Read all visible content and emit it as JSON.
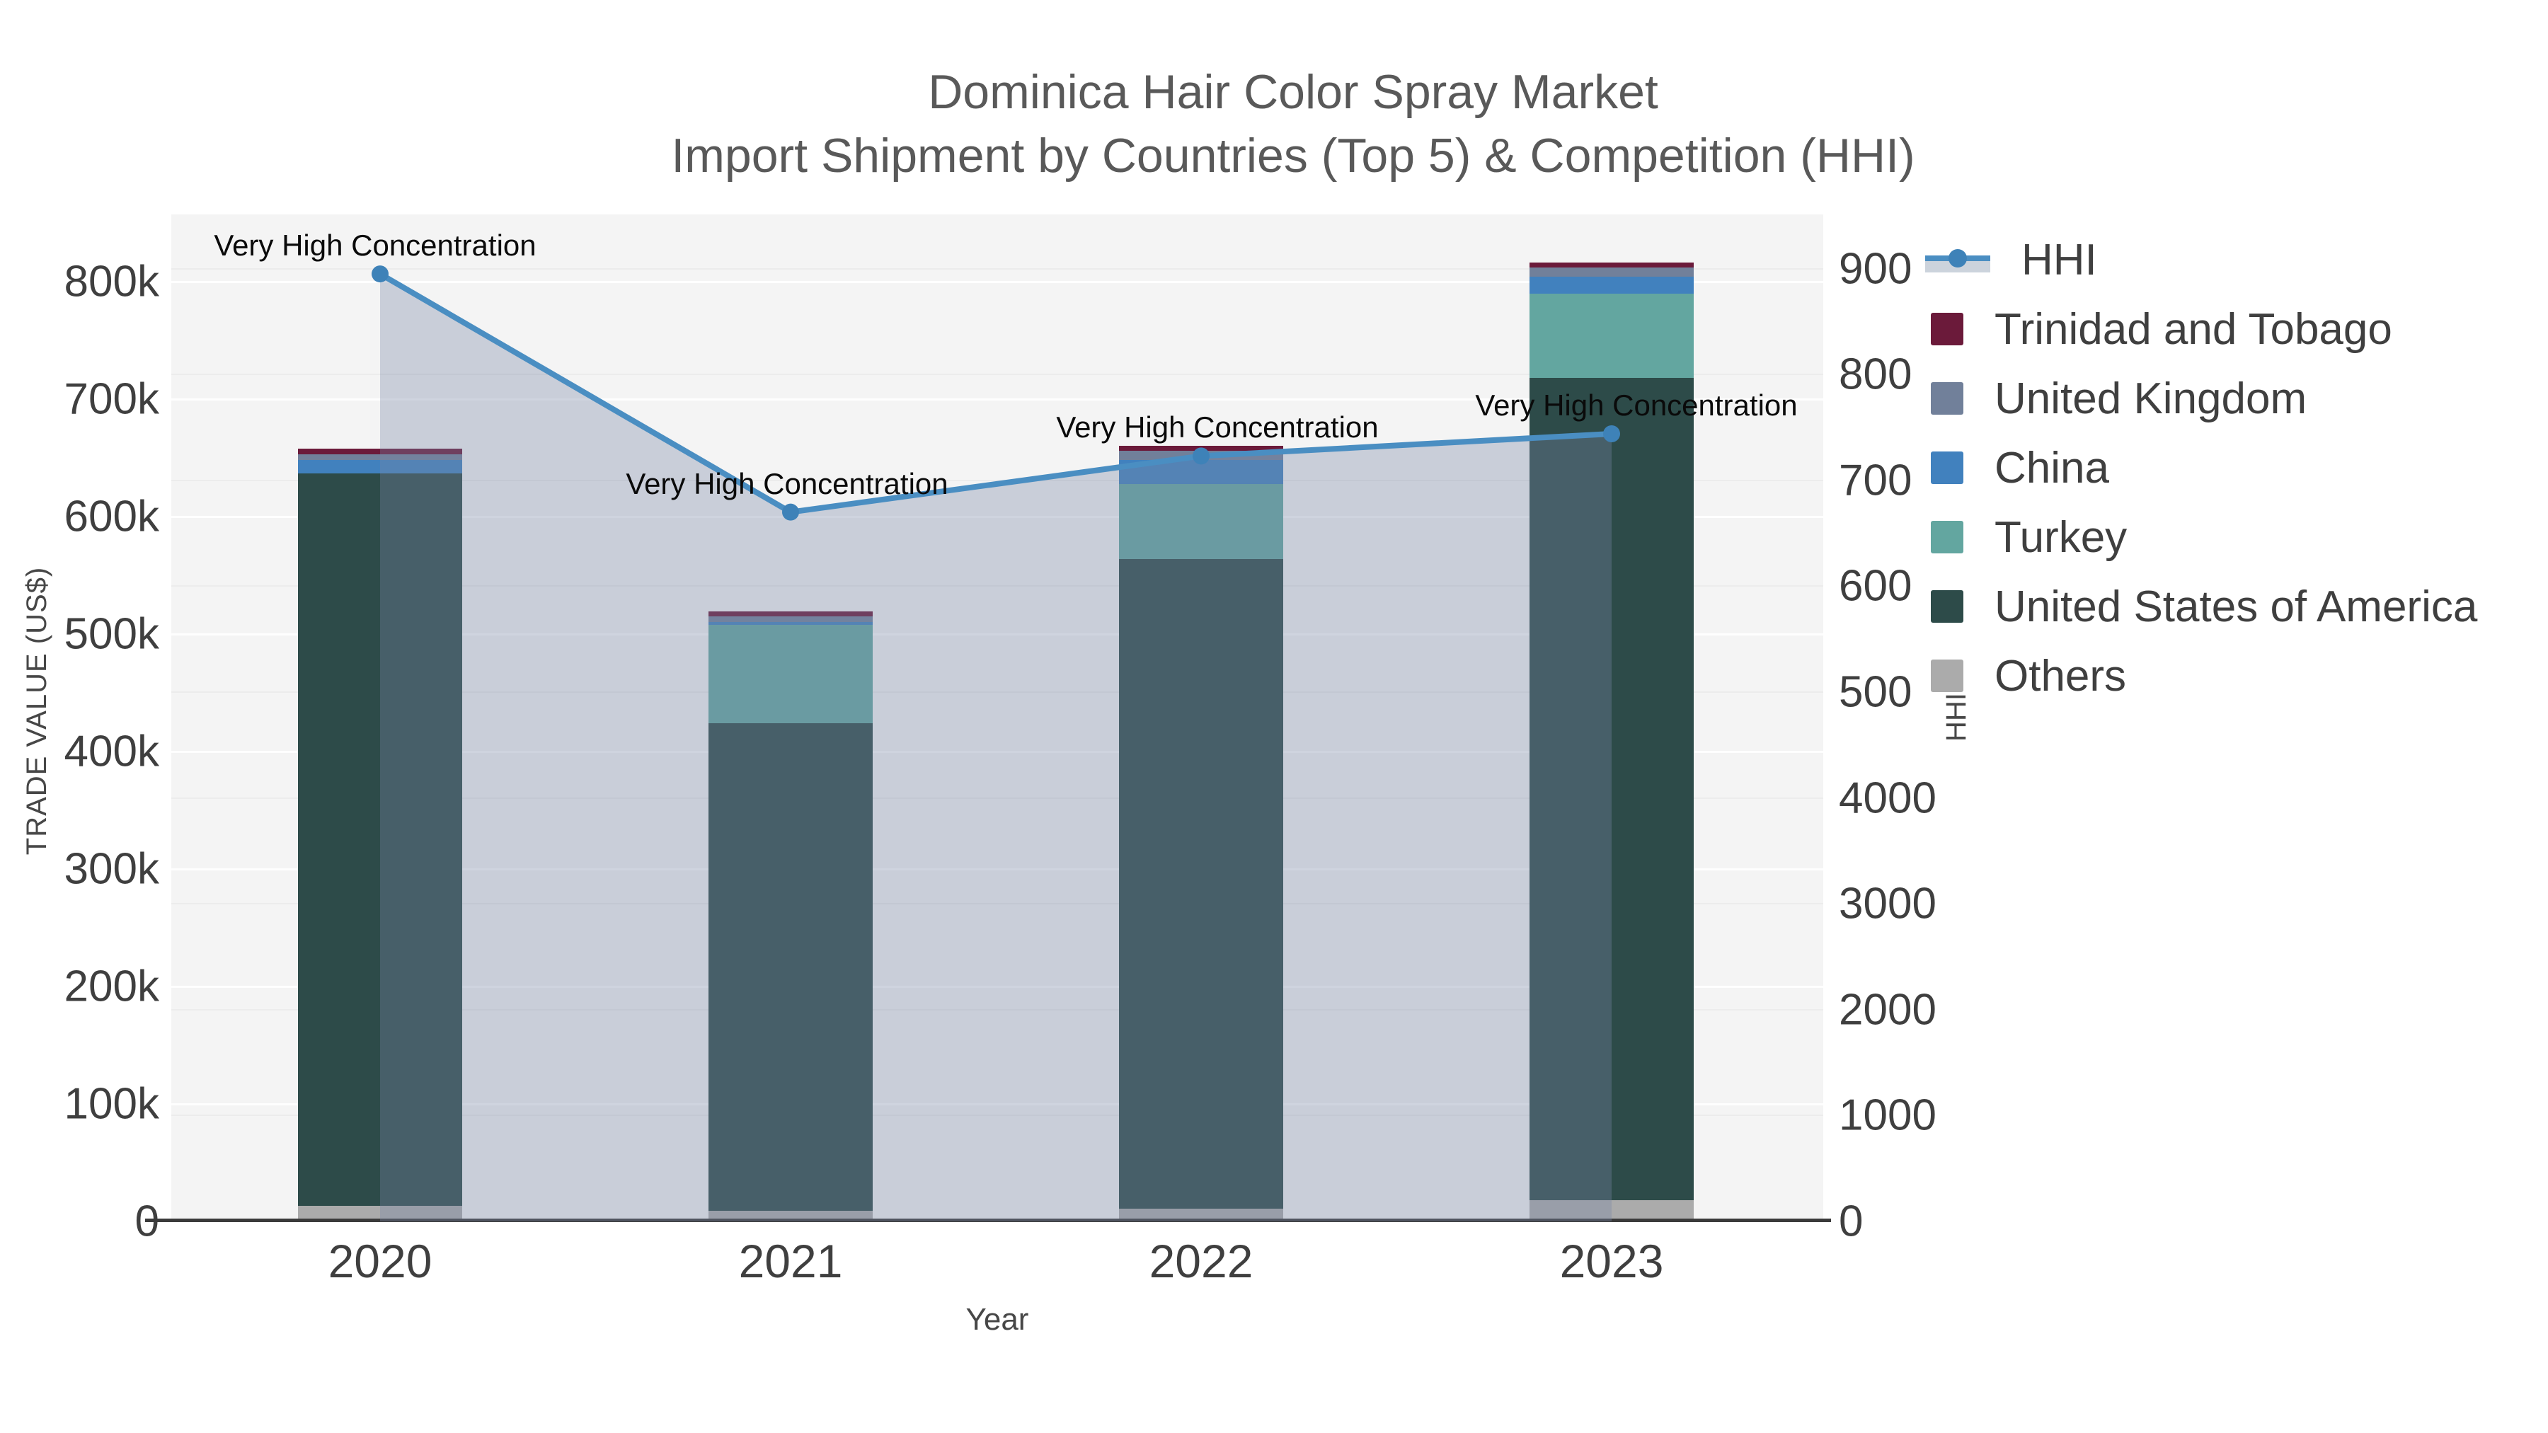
{
  "title": {
    "line1": "Dominica Hair Color Spray Market",
    "line2": "Import Shipment by Countries (Top 5) & Competition (HHI)"
  },
  "axes": {
    "x": {
      "title": "Year",
      "ticks": [
        "2020",
        "2021",
        "2022",
        "2023"
      ]
    },
    "y_left": {
      "title": "TRADE VALUE (US$)",
      "ticks": [
        "0",
        "100k",
        "200k",
        "300k",
        "400k",
        "500k",
        "600k",
        "700k",
        "800k"
      ]
    },
    "y_right": {
      "title": "HHI",
      "ticks": [
        "0",
        "1000",
        "2000",
        "3000",
        "4000",
        "500",
        "600",
        "700",
        "800",
        "900"
      ]
    }
  },
  "legend": {
    "items": [
      {
        "label": "HHI",
        "type": "line"
      },
      {
        "label": "Trinidad and Tobago",
        "type": "swatch",
        "color": "#6b1a3a"
      },
      {
        "label": "United Kingdom",
        "type": "swatch",
        "color": "#71809a"
      },
      {
        "label": "China",
        "type": "swatch",
        "color": "#4181be"
      },
      {
        "label": "Turkey",
        "type": "swatch",
        "color": "#63a6a0"
      },
      {
        "label": "United States of America",
        "type": "swatch",
        "color": "#2d4b49"
      },
      {
        "label": "Others",
        "type": "swatch",
        "color": "#ababab"
      }
    ]
  },
  "chart_data": {
    "type": "bar",
    "subtype": "stacked-bars-with-line-overlay",
    "categories": [
      "2020",
      "2021",
      "2022",
      "2023"
    ],
    "xlabel": "Year",
    "ylabel_left": "TRADE VALUE (US$)",
    "ylabel_right": "HHI",
    "ylim_left": [
      0,
      858000
    ],
    "ylim_right": [
      0,
      9520
    ],
    "grid": true,
    "legend_position": "right",
    "series": [
      {
        "name": "Others",
        "color": "#ababab",
        "values": [
          13000,
          9000,
          11000,
          18000
        ]
      },
      {
        "name": "United States of America",
        "color": "#2d4b49",
        "values": [
          624000,
          415000,
          553000,
          700000
        ]
      },
      {
        "name": "Turkey",
        "color": "#63a6a0",
        "values": [
          0,
          84000,
          64000,
          72000
        ]
      },
      {
        "name": "China",
        "color": "#4181be",
        "values": [
          11000,
          2000,
          20000,
          14000
        ]
      },
      {
        "name": "United Kingdom",
        "color": "#71809a",
        "values": [
          5000,
          5000,
          8000,
          8000
        ]
      },
      {
        "name": "Trinidad and Tobago",
        "color": "#6b1a3a",
        "values": [
          5000,
          4000,
          4000,
          4000
        ]
      }
    ],
    "hhi_line": {
      "name": "HHI",
      "type": "line",
      "color": "#4a8ec2",
      "marker_color": "#3e82b8",
      "area_fill": "rgba(119,136,166,0.35)",
      "values": [
        8950,
        6700,
        7230,
        7440
      ],
      "annotations": [
        "Very High Concentration",
        "Very High Concentration",
        "Very High Concentration",
        "Very High Concentration"
      ]
    }
  }
}
